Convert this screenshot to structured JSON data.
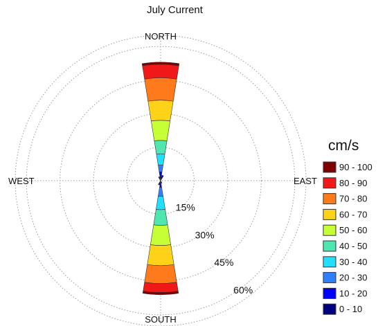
{
  "chart_data": {
    "type": "wind-rose",
    "title": "July Current",
    "units_label": "cm/s",
    "direction_labels": {
      "north": "NORTH",
      "east": "EAST",
      "south": "SOUTH",
      "west": "WEST"
    },
    "radial_ticks": [
      {
        "value": 15,
        "label": "15%"
      },
      {
        "value": 30,
        "label": "30%"
      },
      {
        "value": 45,
        "label": "45%"
      },
      {
        "value": 60,
        "label": "60%"
      }
    ],
    "radial_max": 65,
    "grid": true,
    "legend_position": "right",
    "speed_bins": [
      {
        "label": "0 - 10",
        "color": "#00007f"
      },
      {
        "label": "10 - 20",
        "color": "#0000ff"
      },
      {
        "label": "20 - 30",
        "color": "#2f7fff"
      },
      {
        "label": "30 - 40",
        "color": "#23dfff"
      },
      {
        "label": "40 - 50",
        "color": "#4fe6b0"
      },
      {
        "label": "50 - 60",
        "color": "#c6ff36"
      },
      {
        "label": "60 - 70",
        "color": "#ffd21a"
      },
      {
        "label": "70 - 80",
        "color": "#ff7a1a"
      },
      {
        "label": "80 - 90",
        "color": "#f01818"
      },
      {
        "label": "90 - 100",
        "color": "#7f0000"
      }
    ],
    "petals": [
      {
        "direction": "N",
        "center_deg": 0,
        "half_width_deg": 9,
        "cumulative": [
          2,
          4,
          7,
          12,
          18,
          27,
          36,
          46,
          52,
          53
        ]
      },
      {
        "direction": "S",
        "center_deg": 180,
        "half_width_deg": 9,
        "cumulative": [
          1,
          3,
          7,
          13,
          20,
          29,
          38,
          46,
          50,
          51
        ]
      },
      {
        "direction": "NNE",
        "center_deg": 22.5,
        "half_width_deg": 9,
        "cumulative": [
          2,
          2.5,
          2.5,
          2.5,
          2.5,
          2.5,
          2.5,
          2.5,
          2.5,
          2.5
        ]
      },
      {
        "direction": "NNW",
        "center_deg": 337.5,
        "half_width_deg": 9,
        "cumulative": [
          1.5,
          1.8,
          1.8,
          1.8,
          1.8,
          1.8,
          1.8,
          1.8,
          1.8,
          1.8
        ]
      },
      {
        "direction": "SSW",
        "center_deg": 202.5,
        "half_width_deg": 9,
        "cumulative": [
          1.5,
          2,
          2,
          2,
          2,
          2,
          2,
          2,
          2,
          2
        ]
      },
      {
        "direction": "SSE",
        "center_deg": 157.5,
        "half_width_deg": 9,
        "cumulative": [
          1,
          1.2,
          1.2,
          1.2,
          1.2,
          1.2,
          1.2,
          1.2,
          1.2,
          1.2
        ]
      }
    ]
  }
}
